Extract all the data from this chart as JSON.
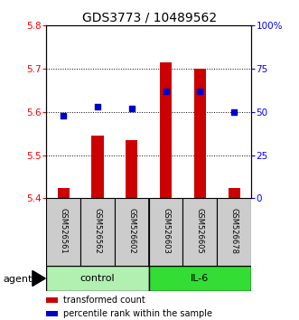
{
  "title": "GDS3773 / 10489562",
  "samples": [
    "GSM526561",
    "GSM526562",
    "GSM526602",
    "GSM526603",
    "GSM526605",
    "GSM526678"
  ],
  "red_values": [
    5.425,
    5.545,
    5.535,
    5.715,
    5.7,
    5.425
  ],
  "blue_values": [
    48.0,
    53.0,
    52.0,
    62.0,
    62.0,
    50.0
  ],
  "ylim_left": [
    5.4,
    5.8
  ],
  "ylim_right": [
    0,
    100
  ],
  "yticks_left": [
    5.4,
    5.5,
    5.6,
    5.7,
    5.8
  ],
  "yticks_right": [
    0,
    25,
    50,
    75,
    100
  ],
  "ytick_labels_right": [
    "0",
    "25",
    "50",
    "75",
    "100%"
  ],
  "groups": [
    {
      "label": "control",
      "color": "#b2f0b2"
    },
    {
      "label": "IL-6",
      "color": "#33dd33"
    }
  ],
  "bar_color": "#CC0000",
  "dot_color": "#0000CC",
  "bar_width": 0.35,
  "agent_label": "agent",
  "legend_items": [
    {
      "color": "#CC0000",
      "label": "transformed count"
    },
    {
      "color": "#0000CC",
      "label": "percentile rank within the sample"
    }
  ],
  "title_fontsize": 10,
  "tick_fontsize": 7.5,
  "sample_fontsize": 6.0,
  "legend_fontsize": 7,
  "group_fontsize": 8
}
